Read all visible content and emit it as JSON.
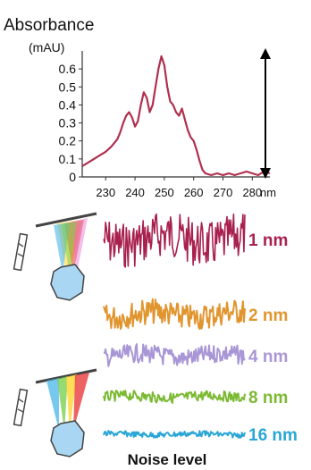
{
  "chart_data": [
    {
      "type": "line",
      "ylabel": "Absorbance",
      "yunit": "(mAU)",
      "x_ticks": [
        "230",
        "240",
        "250",
        "260",
        "270",
        "280"
      ],
      "x_unit": "nm",
      "y_ticks": [
        "0",
        "0.1",
        "0.2",
        "0.3",
        "0.4",
        "0.5",
        "0.6"
      ],
      "xlim": [
        222,
        286
      ],
      "ylim": [
        0,
        0.7
      ],
      "color": "#b0304f",
      "series": [
        {
          "x": [
            222,
            224,
            226,
            228,
            230,
            232,
            234,
            235,
            236,
            237,
            238,
            239,
            240,
            241,
            242,
            243,
            244,
            245,
            246,
            247,
            248,
            249,
            250,
            251,
            252,
            253,
            254,
            255,
            256,
            257,
            258,
            259,
            260,
            261,
            262,
            263,
            264,
            266,
            268,
            270,
            272,
            274,
            276,
            278,
            280,
            282,
            284,
            286
          ],
          "y": [
            0.06,
            0.08,
            0.1,
            0.12,
            0.14,
            0.17,
            0.21,
            0.25,
            0.3,
            0.34,
            0.36,
            0.33,
            0.28,
            0.31,
            0.4,
            0.47,
            0.44,
            0.36,
            0.4,
            0.5,
            0.6,
            0.67,
            0.62,
            0.5,
            0.42,
            0.4,
            0.36,
            0.34,
            0.38,
            0.32,
            0.26,
            0.22,
            0.2,
            0.15,
            0.09,
            0.04,
            0.02,
            0.01,
            0.02,
            0.01,
            0.02,
            0.01,
            0.02,
            0.03,
            0.02,
            0.01,
            0.03,
            0.02
          ]
        }
      ]
    },
    {
      "type": "line",
      "xlabel": "Noise level",
      "series": [
        {
          "name": "1 nm",
          "color": "#a8214e",
          "amplitude": 1.0
        },
        {
          "name": "2 nm",
          "color": "#e0952e",
          "amplitude": 0.55
        },
        {
          "name": "4 nm",
          "color": "#a896d6",
          "amplitude": 0.4
        },
        {
          "name": "8 nm",
          "color": "#7cba34",
          "amplitude": 0.22
        },
        {
          "name": "16 nm",
          "color": "#2aa6d6",
          "amplitude": 0.12
        }
      ]
    }
  ],
  "icons": [
    "narrow-slit-prism-icon",
    "wide-slit-prism-icon",
    "double-arrow-icon"
  ]
}
